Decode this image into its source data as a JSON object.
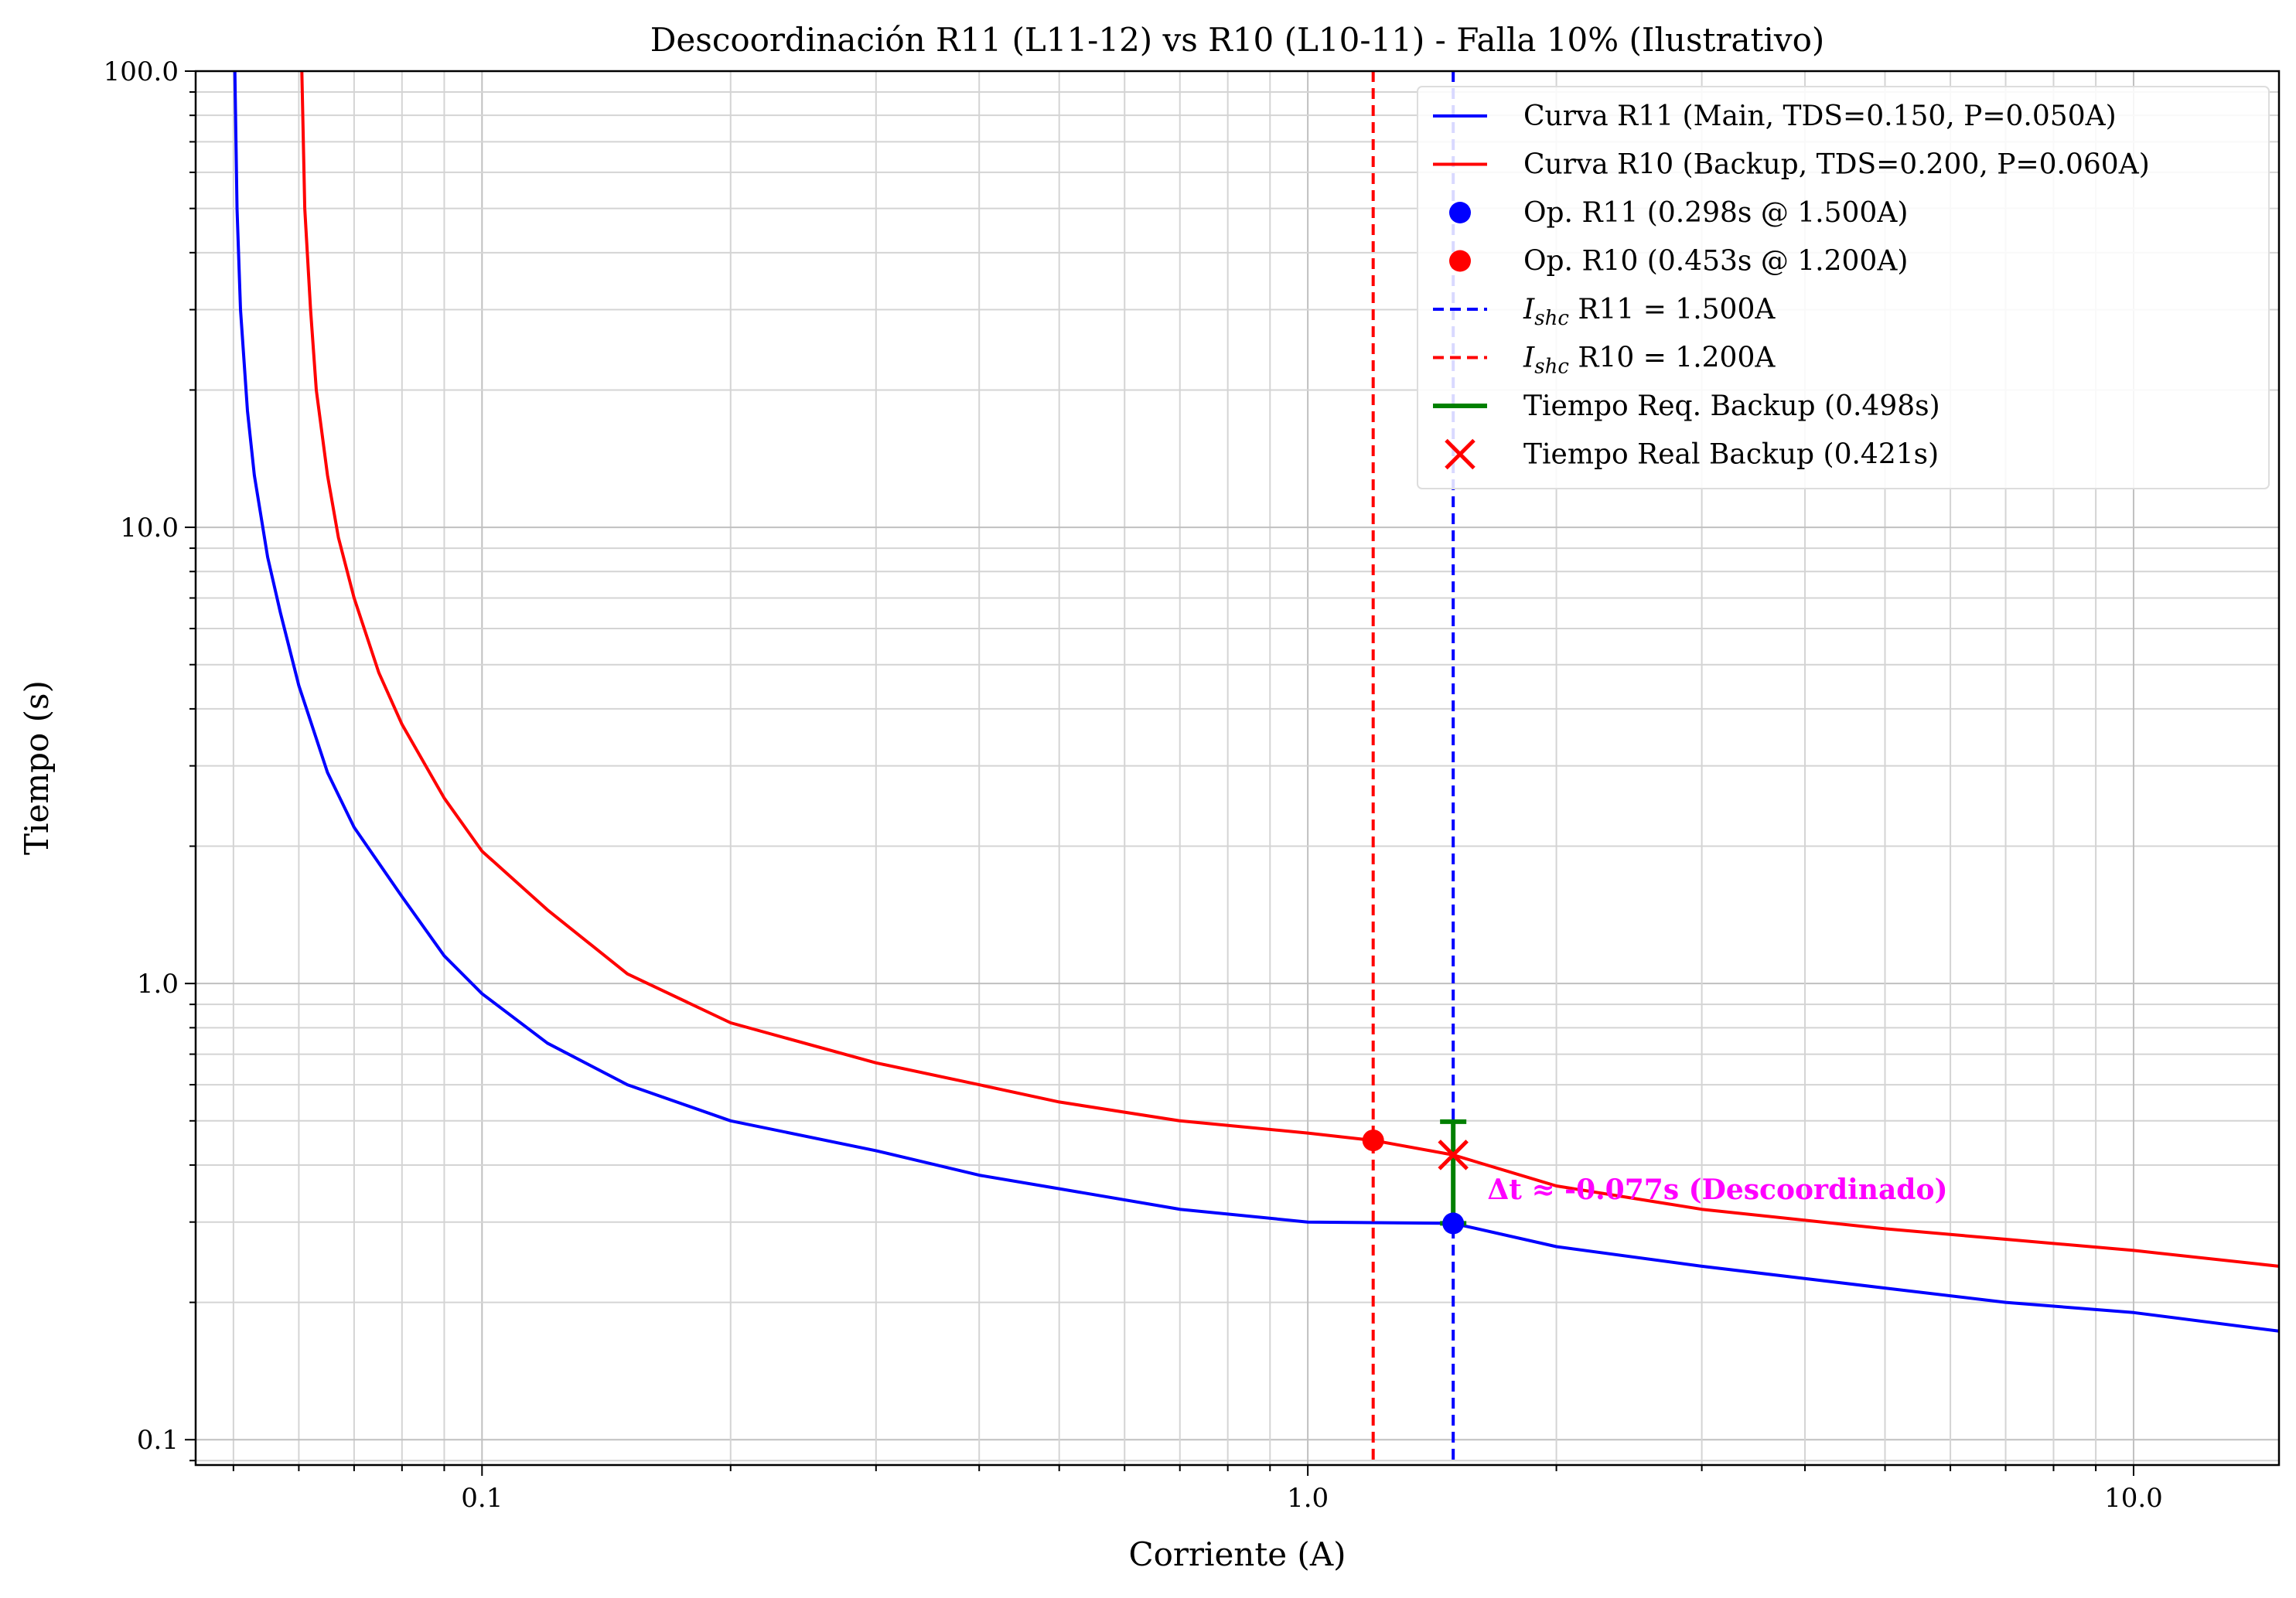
{
  "chart_data": {
    "type": "line",
    "title": "Descoordinación R11 (L11-12) vs R10 (L10-11) - Falla 10% (Ilustrativo)",
    "xlabel": "Corriente (A)",
    "ylabel": "Tiempo (s)",
    "xscale": "log",
    "yscale": "log",
    "xlim": [
      0.045,
      15
    ],
    "ylim": [
      0.088,
      100
    ],
    "xticks": [
      {
        "value": 0.1,
        "label": "0.1"
      },
      {
        "value": 1.0,
        "label": "1.0"
      },
      {
        "value": 10.0,
        "label": "10.0"
      }
    ],
    "yticks": [
      {
        "value": 0.1,
        "label": "0.1"
      },
      {
        "value": 1.0,
        "label": "1.0"
      },
      {
        "value": 10.0,
        "label": "10.0"
      },
      {
        "value": 100.0,
        "label": "100.0"
      }
    ],
    "grid": true,
    "legend_position": "top-right",
    "series": [
      {
        "name": "Curva R11 (Main, TDS=0.150, P=0.050A)",
        "color": "#0000ff",
        "style": "solid",
        "x": [
          0.0502,
          0.0505,
          0.051,
          0.052,
          0.053,
          0.055,
          0.057,
          0.06,
          0.065,
          0.07,
          0.08,
          0.09,
          0.1,
          0.12,
          0.15,
          0.2,
          0.3,
          0.4,
          0.5,
          0.7,
          1.0,
          1.5,
          2.0,
          3.0,
          5.0,
          7.0,
          10.0,
          15.0
        ],
        "y": [
          100,
          50,
          30,
          18,
          13,
          8.6,
          6.5,
          4.5,
          2.9,
          2.2,
          1.55,
          1.15,
          0.95,
          0.74,
          0.6,
          0.5,
          0.43,
          0.38,
          0.355,
          0.32,
          0.3,
          0.298,
          0.265,
          0.24,
          0.215,
          0.2,
          0.19,
          0.173
        ]
      },
      {
        "name": "Curva R10 (Backup, TDS=0.200, P=0.060A)",
        "color": "#ff0000",
        "style": "solid",
        "x": [
          0.0605,
          0.061,
          0.062,
          0.063,
          0.065,
          0.067,
          0.07,
          0.075,
          0.08,
          0.09,
          0.1,
          0.12,
          0.15,
          0.2,
          0.3,
          0.4,
          0.5,
          0.7,
          1.0,
          1.2,
          1.5,
          2.0,
          3.0,
          5.0,
          7.0,
          10.0,
          15.0
        ],
        "y": [
          100,
          50,
          30,
          20,
          13,
          9.5,
          7.0,
          4.8,
          3.7,
          2.55,
          1.95,
          1.45,
          1.05,
          0.82,
          0.67,
          0.6,
          0.55,
          0.5,
          0.47,
          0.453,
          0.421,
          0.36,
          0.32,
          0.29,
          0.275,
          0.26,
          0.24
        ]
      },
      {
        "name": "Op. R11 (0.298s @ 1.500A)",
        "color": "#0000ff",
        "style": "marker-circle",
        "x": [
          1.5
        ],
        "y": [
          0.298
        ]
      },
      {
        "name": "Op. R10 (0.453s @ 1.200A)",
        "color": "#ff0000",
        "style": "marker-circle",
        "x": [
          1.2
        ],
        "y": [
          0.453
        ]
      },
      {
        "name": "$I_{shc}$ R11 = 1.500A",
        "legend_main": "I",
        "legend_sub": "shc",
        "legend_rest": " R11 = 1.500A",
        "color": "#0000ff",
        "style": "vline-dashed",
        "x": [
          1.5
        ]
      },
      {
        "name": "$I_{shc}$ R10 = 1.200A",
        "legend_main": "I",
        "legend_sub": "shc",
        "legend_rest": " R10 = 1.200A",
        "color": "#ff0000",
        "style": "vline-dashed",
        "x": [
          1.2
        ]
      },
      {
        "name": "Tiempo Req. Backup (0.498s)",
        "color": "#008000",
        "style": "errorbar",
        "x": [
          1.5
        ],
        "y_range": [
          0.298,
          0.498
        ]
      },
      {
        "name": "Tiempo Real Backup (0.421s)",
        "color": "#ff0000",
        "style": "marker-x",
        "x": [
          1.5
        ],
        "y": [
          0.421
        ]
      }
    ],
    "annotations": [
      {
        "text": "Δt ≈ -0.077s (Descoordinado)",
        "x": 1.65,
        "y": 0.35,
        "color": "#ff00ff"
      }
    ]
  }
}
